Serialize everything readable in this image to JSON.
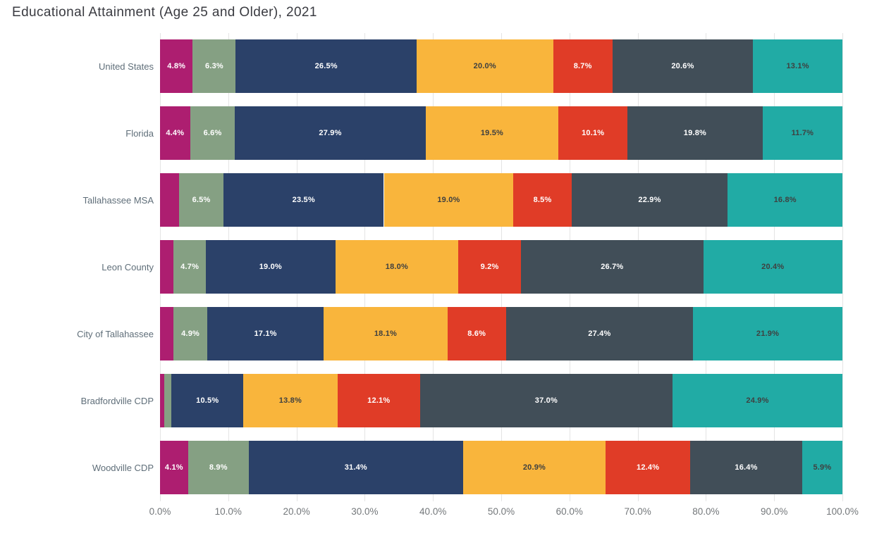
{
  "title": "Educational Attainment (Age 25 and Older), 2021",
  "colors": {
    "background": "#ffffff",
    "grid": "#e4e4e4",
    "title_text": "#3a3b41",
    "category_label_text": "#5f6e79",
    "axis_label_text": "#73777a"
  },
  "chart_data": {
    "type": "bar",
    "variant": "stacked-horizontal-100-percent",
    "title": "Educational Attainment (Age 25 and Older), 2021",
    "xlabel": "",
    "ylabel": "",
    "xlim": [
      0,
      100
    ],
    "grid": true,
    "legend": false,
    "x_ticks": [
      "0.0%",
      "10.0%",
      "20.0%",
      "30.0%",
      "40.0%",
      "50.0%",
      "60.0%",
      "70.0%",
      "80.0%",
      "90.0%",
      "100.0%"
    ],
    "categories": [
      "United States",
      "Florida",
      "Tallahassee MSA",
      "Leon County",
      "City of Tallahassee",
      "Bradfordville CDP",
      "Woodville CDP"
    ],
    "series": [
      {
        "name": "series-1-magenta",
        "color": "#ad1e70",
        "label_color": "#ffffff",
        "values": [
          4.8,
          4.4,
          2.8,
          2.0,
          2.0,
          0.6,
          4.1
        ],
        "data_labels": [
          "4.8%",
          "4.4%",
          "",
          "",
          "",
          "",
          "4.1%"
        ]
      },
      {
        "name": "series-2-sage",
        "color": "#85a083",
        "label_color": "#ffffff",
        "values": [
          6.3,
          6.6,
          6.5,
          4.7,
          4.9,
          1.1,
          8.9
        ],
        "data_labels": [
          "6.3%",
          "6.6%",
          "6.5%",
          "4.7%",
          "4.9%",
          "",
          "8.9%"
        ]
      },
      {
        "name": "series-3-navy",
        "color": "#2b4169",
        "label_color": "#ffffff",
        "values": [
          26.5,
          27.9,
          23.5,
          19.0,
          17.1,
          10.5,
          31.4
        ],
        "data_labels": [
          "26.5%",
          "27.9%",
          "23.5%",
          "19.0%",
          "17.1%",
          "10.5%",
          "31.4%"
        ]
      },
      {
        "name": "series-4-amber",
        "color": "#f9b53c",
        "label_color": "#3f4040",
        "values": [
          20.0,
          19.5,
          19.0,
          18.0,
          18.1,
          13.8,
          20.9
        ],
        "data_labels": [
          "20.0%",
          "19.5%",
          "19.0%",
          "18.0%",
          "18.1%",
          "13.8%",
          "20.9%"
        ]
      },
      {
        "name": "series-5-red",
        "color": "#e03c27",
        "label_color": "#ffffff",
        "values": [
          8.7,
          10.1,
          8.5,
          9.2,
          8.6,
          12.1,
          12.4
        ],
        "data_labels": [
          "8.7%",
          "10.1%",
          "8.5%",
          "9.2%",
          "8.6%",
          "12.1%",
          "12.4%"
        ]
      },
      {
        "name": "series-6-slate",
        "color": "#414e58",
        "label_color": "#ffffff",
        "values": [
          20.6,
          19.8,
          22.9,
          26.7,
          27.4,
          37.0,
          16.4
        ],
        "data_labels": [
          "20.6%",
          "19.8%",
          "22.9%",
          "26.7%",
          "27.4%",
          "37.0%",
          "16.4%"
        ]
      },
      {
        "name": "series-7-teal",
        "color": "#21aba5",
        "label_color": "#3f4040",
        "values": [
          13.1,
          11.7,
          16.8,
          20.4,
          21.9,
          24.9,
          5.9
        ],
        "data_labels": [
          "13.1%",
          "11.7%",
          "16.8%",
          "20.4%",
          "21.9%",
          "24.9%",
          "5.9%"
        ]
      }
    ]
  }
}
